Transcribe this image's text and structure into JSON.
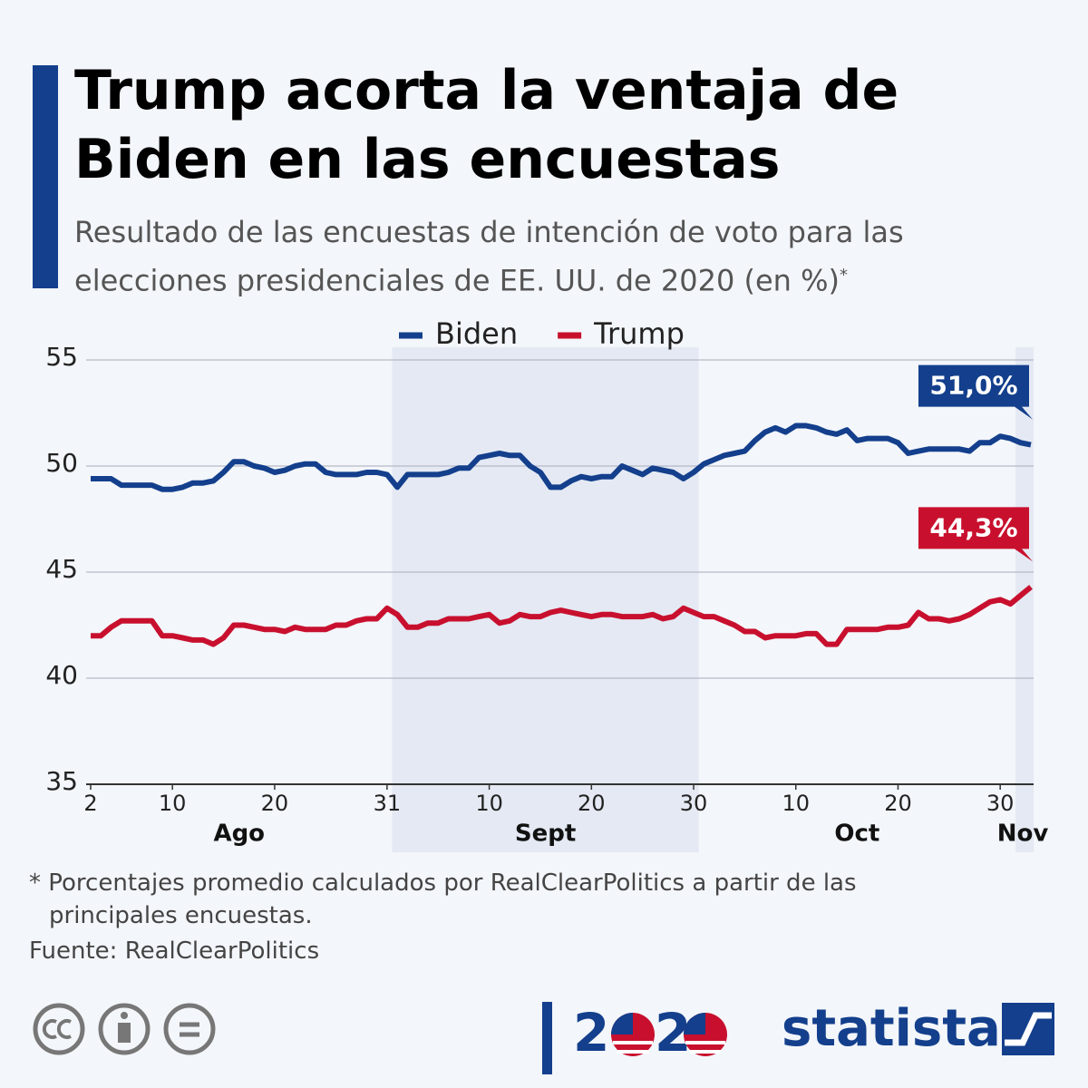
{
  "header": {
    "title": "Trump acorta la ventaja de Biden en las encuestas",
    "subtitle": "Resultado de las encuestas de intención de voto para las elecciones presidenciales de EE. UU. de 2020 (en %)",
    "subtitle_mark": "*"
  },
  "chart_data": {
    "type": "line",
    "categories": [
      "2",
      null,
      null,
      null,
      null,
      null,
      null,
      null,
      "10",
      null,
      null,
      null,
      null,
      null,
      null,
      null,
      null,
      null,
      "20",
      null,
      null,
      null,
      null,
      null,
      null,
      null,
      null,
      null,
      null,
      "31",
      null,
      null,
      null,
      null,
      null,
      null,
      null,
      null,
      null,
      "10",
      null,
      null,
      null,
      null,
      null,
      null,
      null,
      null,
      null,
      "20",
      null,
      null,
      null,
      null,
      null,
      null,
      null,
      null,
      null,
      "30",
      null,
      null,
      null,
      null,
      null,
      null,
      null,
      null,
      null,
      "10",
      null,
      null,
      null,
      null,
      null,
      null,
      null,
      null,
      null,
      "20",
      null,
      null,
      null,
      null,
      null,
      null,
      null,
      null,
      null,
      "30",
      null,
      null,
      null
    ],
    "months": [
      "Ago",
      "Sept",
      "Oct",
      "Nov"
    ],
    "series": [
      {
        "name": "Biden",
        "color": "#133f8c",
        "values": [
          49.4,
          49.4,
          49.4,
          49.1,
          49.1,
          49.1,
          49.1,
          48.9,
          48.9,
          49.0,
          49.2,
          49.2,
          49.3,
          49.7,
          50.2,
          50.2,
          50.0,
          49.9,
          49.7,
          49.8,
          50.0,
          50.1,
          50.1,
          49.7,
          49.6,
          49.6,
          49.6,
          49.7,
          49.7,
          49.6,
          49.0,
          49.6,
          49.6,
          49.6,
          49.6,
          49.7,
          49.9,
          49.9,
          50.4,
          50.5,
          50.6,
          50.5,
          50.5,
          50.0,
          49.7,
          49.0,
          49.0,
          49.3,
          49.5,
          49.4,
          49.5,
          49.5,
          50.0,
          49.8,
          49.6,
          49.9,
          49.8,
          49.7,
          49.4,
          49.7,
          50.1,
          50.3,
          50.5,
          50.6,
          50.7,
          51.2,
          51.6,
          51.8,
          51.6,
          51.9,
          51.9,
          51.8,
          51.6,
          51.5,
          51.7,
          51.2,
          51.3,
          51.3,
          51.3,
          51.1,
          50.6,
          50.7,
          50.8,
          50.8,
          50.8,
          50.8,
          50.7,
          51.1,
          51.1,
          51.4,
          51.3,
          51.1,
          51.0
        ],
        "value_labels": [
          null,
          null,
          null,
          null,
          null,
          null,
          null,
          null,
          null,
          null,
          null,
          null,
          null,
          null,
          null,
          null,
          null,
          null,
          null,
          null,
          null,
          null,
          null,
          null,
          null,
          null,
          null,
          null,
          null,
          null,
          null,
          null,
          null,
          null,
          null,
          null,
          null,
          null,
          null,
          null,
          null,
          null,
          null,
          null,
          null,
          null,
          null,
          null,
          null,
          null,
          null,
          null,
          null,
          null,
          null,
          null,
          null,
          null,
          null,
          null,
          null,
          null,
          null,
          null,
          null,
          null,
          null,
          null,
          null,
          null,
          null,
          null,
          null,
          null,
          null,
          null,
          null,
          null,
          null,
          null,
          null,
          null,
          null,
          null,
          null,
          null,
          null,
          null,
          null,
          null,
          null,
          null,
          "51,0%"
        ]
      },
      {
        "name": "Trump",
        "color": "#c8102e",
        "values": [
          42.0,
          42.0,
          42.4,
          42.7,
          42.7,
          42.7,
          42.7,
          42.0,
          42.0,
          41.9,
          41.8,
          41.8,
          41.6,
          41.9,
          42.5,
          42.5,
          42.4,
          42.3,
          42.3,
          42.2,
          42.4,
          42.3,
          42.3,
          42.3,
          42.5,
          42.5,
          42.7,
          42.8,
          42.8,
          43.3,
          43.0,
          42.4,
          42.4,
          42.6,
          42.6,
          42.8,
          42.8,
          42.8,
          42.9,
          43.0,
          42.6,
          42.7,
          43.0,
          42.9,
          42.9,
          43.1,
          43.2,
          43.1,
          43.0,
          42.9,
          43.0,
          43.0,
          42.9,
          42.9,
          42.9,
          43.0,
          42.8,
          42.9,
          43.3,
          43.1,
          42.9,
          42.9,
          42.7,
          42.5,
          42.2,
          42.2,
          41.9,
          42.0,
          42.0,
          42.0,
          42.1,
          42.1,
          41.6,
          41.6,
          42.3,
          42.3,
          42.3,
          42.3,
          42.4,
          42.4,
          42.5,
          43.1,
          42.8,
          42.8,
          42.7,
          42.8,
          43.0,
          43.3,
          43.6,
          43.7,
          43.5,
          43.9,
          44.3
        ],
        "value_labels": [
          null,
          null,
          null,
          null,
          null,
          null,
          null,
          null,
          null,
          null,
          null,
          null,
          null,
          null,
          null,
          null,
          null,
          null,
          null,
          null,
          null,
          null,
          null,
          null,
          null,
          null,
          null,
          null,
          null,
          null,
          null,
          null,
          null,
          null,
          null,
          null,
          null,
          null,
          null,
          null,
          null,
          null,
          null,
          null,
          null,
          null,
          null,
          null,
          null,
          null,
          null,
          null,
          null,
          null,
          null,
          null,
          null,
          null,
          null,
          null,
          null,
          null,
          null,
          null,
          null,
          null,
          null,
          null,
          null,
          null,
          null,
          null,
          null,
          null,
          null,
          null,
          null,
          null,
          null,
          null,
          null,
          null,
          null,
          null,
          null,
          null,
          null,
          null,
          null,
          null,
          null,
          null,
          "44,3%"
        ]
      }
    ],
    "ylim": [
      35,
      55
    ],
    "yticks": [
      35,
      40,
      45,
      50,
      55
    ],
    "grid": true,
    "legend": "top"
  },
  "footer": {
    "note": "Porcentajes promedio calculados por RealClearPolitics a partir de las principales encuestas.",
    "note_mark": "*",
    "source": "Fuente: RealClearPolitics",
    "event_digits": [
      "2",
      "2"
    ],
    "publisher": "statista"
  }
}
